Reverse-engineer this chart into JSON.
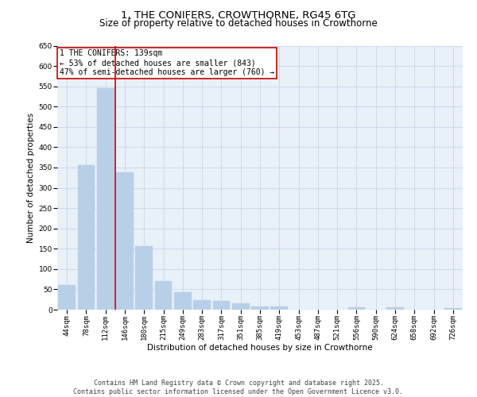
{
  "title_line1": "1, THE CONIFERS, CROWTHORNE, RG45 6TG",
  "title_line2": "Size of property relative to detached houses in Crowthorne",
  "xlabel": "Distribution of detached houses by size in Crowthorne",
  "ylabel": "Number of detached properties",
  "categories": [
    "44sqm",
    "78sqm",
    "112sqm",
    "146sqm",
    "180sqm",
    "215sqm",
    "249sqm",
    "283sqm",
    "317sqm",
    "351sqm",
    "385sqm",
    "419sqm",
    "453sqm",
    "487sqm",
    "521sqm",
    "556sqm",
    "590sqm",
    "624sqm",
    "658sqm",
    "692sqm",
    "726sqm"
  ],
  "values": [
    60,
    355,
    545,
    338,
    157,
    70,
    43,
    23,
    22,
    15,
    7,
    7,
    0,
    0,
    0,
    5,
    0,
    5,
    0,
    0,
    3
  ],
  "bar_color": "#b8cfe8",
  "bar_edge_color": "#b8cfe8",
  "grid_color": "#c8d8e8",
  "background_color": "#e8f0f8",
  "vline_x": 2.5,
  "vline_color": "#cc0000",
  "annotation_text": "1 THE CONIFERS: 139sqm\n← 53% of detached houses are smaller (843)\n47% of semi-detached houses are larger (760) →",
  "annotation_box_color": "#ffffff",
  "annotation_box_edge": "#cc0000",
  "ylim": [
    0,
    650
  ],
  "yticks": [
    0,
    50,
    100,
    150,
    200,
    250,
    300,
    350,
    400,
    450,
    500,
    550,
    600,
    650
  ],
  "footer_line1": "Contains HM Land Registry data © Crown copyright and database right 2025.",
  "footer_line2": "Contains public sector information licensed under the Open Government Licence v3.0.",
  "title_fontsize": 9.5,
  "subtitle_fontsize": 8.5,
  "axis_label_fontsize": 7.5,
  "tick_fontsize": 6.5,
  "annotation_fontsize": 7,
  "footer_fontsize": 6
}
